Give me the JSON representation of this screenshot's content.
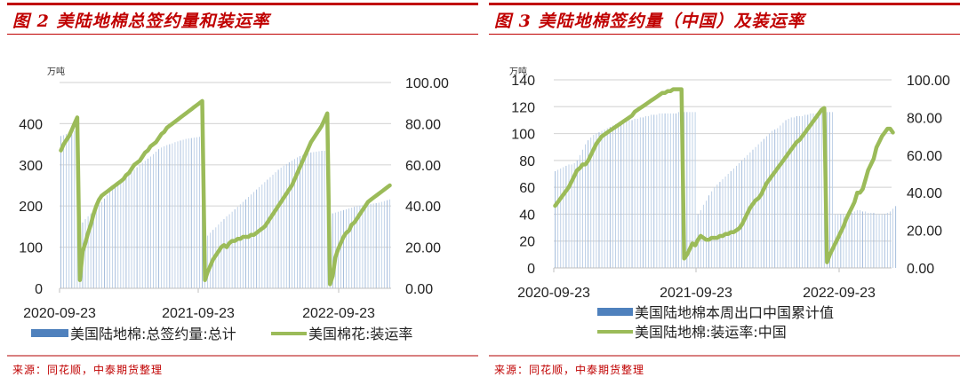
{
  "colors": {
    "accent_red": "#C00000",
    "rule_red": "#D98080",
    "bar_blue": "#4F81BD",
    "bar_light": "#B9CDE5",
    "line_green": "#9BBB59",
    "grid": "#D9D9D9",
    "axis": "#BFBFBF"
  },
  "source_text": "来源：同花顺，中泰期货整理",
  "chart_data": [
    {
      "id": "fig2",
      "type": "bar+line",
      "title": "图 2  美陆地棉总签约量和装运率",
      "unit_label": "万吨",
      "x_tick_labels": [
        "2020-09-23",
        "2021-09-23",
        "2022-09-23"
      ],
      "left_axis": {
        "label": "万吨",
        "ylim": [
          0,
          500
        ],
        "ticks": [
          "0",
          "100",
          "200",
          "300",
          "400",
          "500"
        ]
      },
      "right_axis": {
        "ylim": [
          0,
          100
        ],
        "ticks": [
          "0.00",
          "20.00",
          "40.00",
          "60.00",
          "80.00",
          "100.00"
        ]
      },
      "grid": true,
      "legend_position": "bottom",
      "series": [
        {
          "name": "美国陆地棉:总签约量:总计",
          "type": "bar",
          "axis": "left",
          "segments": [
            {
              "start_week": 0,
              "values": [
                370,
                372,
                375,
                378,
                380,
                383,
                385
              ]
            },
            {
              "start_week": 7,
              "values": [
                150,
                160,
                168,
                175,
                182,
                188,
                195,
                203,
                210,
                218,
                226,
                235,
                243,
                250,
                256,
                260,
                265,
                270,
                276,
                282,
                288,
                294,
                300,
                305,
                310,
                315,
                320,
                326,
                332,
                338,
                342,
                345,
                348,
                350,
                352,
                355,
                357,
                359,
                361,
                363,
                364,
                365,
                366,
                367,
                368,
                368
              ]
            },
            {
              "start_week": 53,
              "values": [
                120,
                128,
                135,
                142,
                148,
                155,
                162,
                168,
                175,
                180,
                186,
                192,
                198,
                204,
                210,
                216,
                222,
                228,
                234,
                240,
                246,
                252,
                258,
                264,
                270,
                276,
                282,
                288,
                293,
                298,
                302,
                306,
                310,
                314,
                318,
                321,
                324,
                326,
                328,
                330,
                331,
                332,
                333,
                334,
                334,
                335
              ]
            },
            {
              "start_week": 99,
              "values": [
                180,
                182,
                184,
                186,
                188,
                190,
                192,
                194,
                196,
                198,
                200,
                201,
                202,
                203,
                204,
                205,
                206,
                207,
                208,
                210,
                212,
                214,
                216
              ]
            }
          ]
        },
        {
          "name": "美国棉花:装运率",
          "type": "line",
          "axis": "right",
          "segments": [
            {
              "start_week": 0,
              "values": [
                67,
                70,
                72,
                74,
                77,
                80,
                83
              ]
            },
            {
              "start_week": 7,
              "values": [
                4,
                18,
                22,
                27,
                31,
                36,
                40,
                43,
                45,
                46,
                47,
                48,
                49,
                50,
                51,
                52,
                53,
                55,
                56,
                58,
                60,
                61,
                62,
                64,
                66,
                67,
                69,
                70,
                71,
                73,
                75,
                76,
                78,
                79,
                80,
                81,
                82,
                83,
                84,
                85,
                86,
                87,
                88,
                89,
                90,
                91
              ]
            },
            {
              "start_week": 53,
              "values": [
                4,
                8,
                11,
                14,
                16,
                18,
                20,
                21,
                20,
                22,
                23,
                23,
                24,
                24,
                25,
                25,
                25,
                26,
                26,
                27,
                28,
                29,
                30,
                32,
                34,
                36,
                38,
                40,
                42,
                44,
                46,
                48,
                50,
                53,
                56,
                59,
                62,
                65,
                68,
                71,
                73,
                75,
                77,
                79,
                82,
                85
              ]
            },
            {
              "start_week": 99,
              "values": [
                2,
                6,
                15,
                19,
                22,
                25,
                27,
                28,
                31,
                32,
                34,
                36,
                38,
                40,
                42,
                43,
                44,
                45,
                46,
                47,
                48,
                49,
                50
              ]
            }
          ]
        }
      ]
    },
    {
      "id": "fig3",
      "type": "bar+line",
      "title": "图 3  美陆地棉签约量（中国）及装运率",
      "unit_label": "万吨",
      "x_tick_labels": [
        "2020-09-23",
        "2021-09-23",
        "2022-09-23"
      ],
      "left_axis": {
        "label": "万吨",
        "ylim": [
          0,
          140
        ],
        "ticks": [
          "0",
          "20",
          "40",
          "60",
          "80",
          "100",
          "120",
          "140"
        ]
      },
      "right_axis": {
        "ylim": [
          0,
          100
        ],
        "ticks": [
          "0.00",
          "20.00",
          "40.00",
          "60.00",
          "80.00",
          "100.00"
        ]
      },
      "grid": true,
      "legend_position": "bottom",
      "series": [
        {
          "name": "美国陆地棉本周出口中国累计值",
          "type": "bar",
          "axis": "left",
          "segments": [
            {
              "start_week": 0,
              "values": [
                72,
                73,
                74,
                75,
                76,
                77,
                77,
                78,
                80,
                84,
                88,
                92,
                95,
                97,
                99,
                100,
                101,
                102,
                103,
                104,
                105,
                106,
                107,
                108,
                108,
                109,
                109,
                110,
                110,
                111,
                111,
                112,
                112,
                113,
                113,
                114,
                114,
                114,
                115,
                115,
                115,
                115,
                115,
                115,
                115,
                116,
                116,
                116,
                116,
                116,
                116,
                116
              ]
            },
            {
              "start_week": 52,
              "values": [
                40,
                43,
                47,
                50,
                54,
                57,
                60,
                62,
                64,
                66,
                68,
                70,
                72,
                74,
                76,
                78,
                80,
                82,
                84,
                86,
                88,
                90,
                92,
                94,
                96,
                98,
                100,
                102,
                103,
                104,
                106,
                108,
                110,
                111,
                112,
                112,
                113,
                113,
                113,
                114,
                114,
                115,
                115,
                115,
                116,
                116,
                116,
                116,
                116,
                116
              ]
            },
            {
              "start_week": 102,
              "values": [
                40,
                40,
                40,
                40,
                40,
                41,
                41,
                42,
                43,
                43,
                42,
                42,
                41,
                41,
                41,
                40,
                40,
                40,
                40,
                41,
                42,
                44,
                46
              ]
            }
          ]
        },
        {
          "name": "美国陆地棉:装运率:中国",
          "type": "line",
          "axis": "right",
          "segments": [
            {
              "start_week": 0,
              "values": [
                33,
                35,
                37,
                39,
                41,
                43,
                46,
                49,
                52,
                53,
                55,
                55,
                57,
                60,
                63,
                66,
                68,
                70,
                71,
                72,
                73,
                74,
                75,
                76,
                77,
                78,
                79,
                80,
                81,
                83,
                84,
                85,
                86,
                87,
                88,
                89,
                90,
                91,
                92,
                93,
                93,
                94,
                94,
                95,
                95,
                95,
                95
              ]
            },
            {
              "start_week": 47,
              "values": [
                5,
                7,
                10,
                13,
                12,
                15,
                17,
                16,
                15,
                15,
                16,
                16,
                16,
                17,
                17,
                18,
                18,
                19,
                19,
                20,
                21,
                23,
                26,
                29,
                32,
                34,
                36,
                37,
                39,
                42,
                45,
                47,
                49,
                51,
                53,
                55,
                57,
                59,
                61,
                63,
                65,
                67,
                68,
                70,
                72,
                74,
                76,
                78,
                80,
                82,
                84,
                85
              ]
            },
            {
              "start_week": 99,
              "values": [
                3,
                7,
                10,
                13,
                16,
                19,
                22,
                26,
                29,
                32,
                35,
                40,
                40,
                42,
                47,
                52,
                55,
                58,
                64,
                67,
                70,
                72,
                74,
                74,
                72
              ]
            }
          ]
        }
      ]
    }
  ],
  "fig2": {
    "title": "图 2  美陆地棉总签约量和装运率",
    "legend_bar": "美国陆地棉:总签约量:总计",
    "legend_line": "美国棉花:装运率"
  },
  "fig3": {
    "title": "图 3  美陆地棉签约量（中国）及装运率",
    "legend_bar": "美国陆地棉本周出口中国累计值",
    "legend_line": "美国陆地棉:装运率:中国"
  }
}
